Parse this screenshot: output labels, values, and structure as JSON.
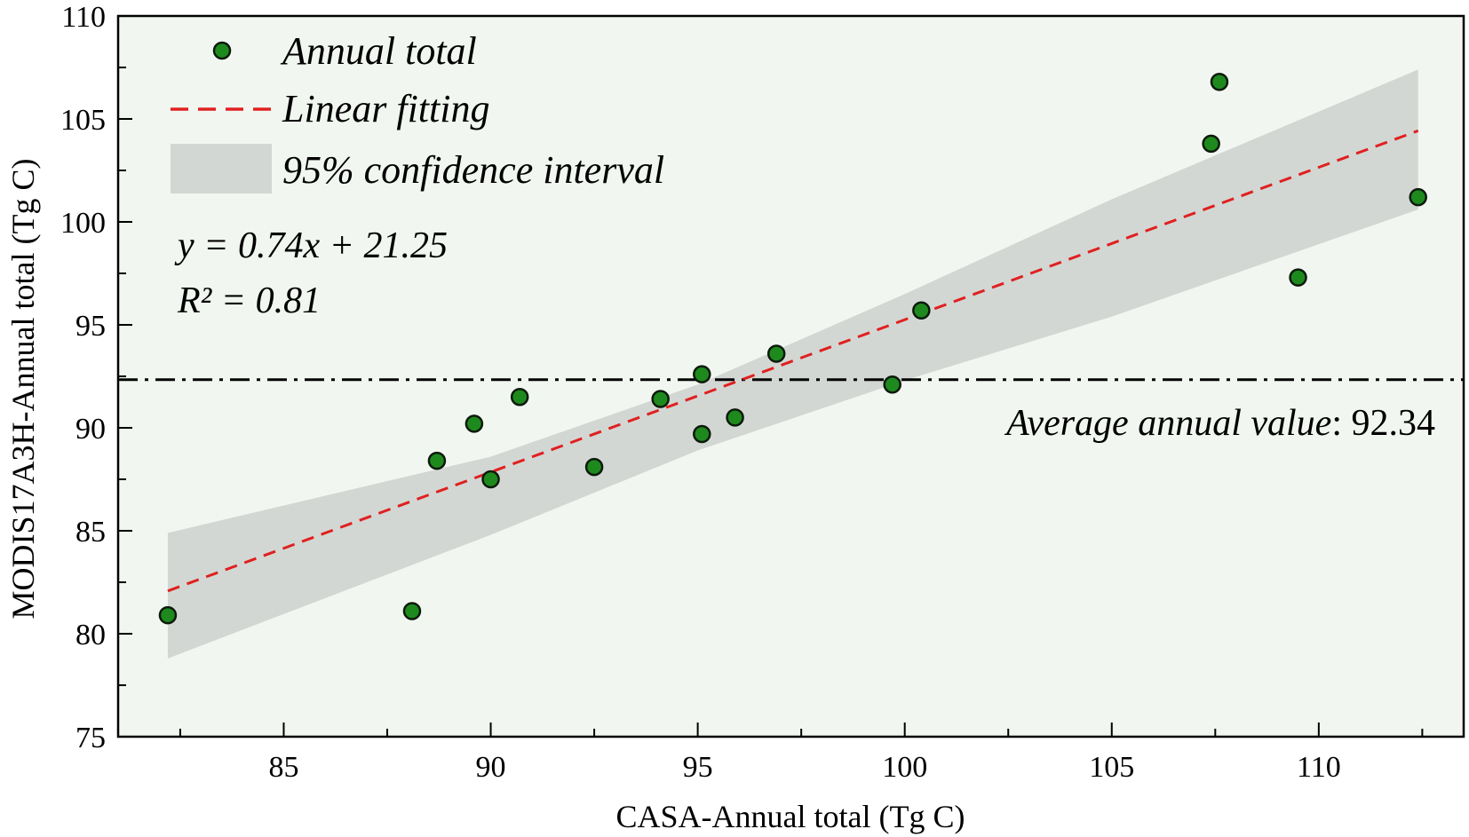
{
  "chart_data": {
    "type": "scatter",
    "xlabel": "CASA-Annual total (Tg C)",
    "ylabel": "MODIS17A3H-Annual total (Tg C)",
    "xlim": [
      81,
      113.5
    ],
    "ylim": [
      75,
      110
    ],
    "xticks": [
      85,
      90,
      95,
      100,
      105,
      110
    ],
    "yticks": [
      75,
      80,
      85,
      90,
      95,
      100,
      105,
      110
    ],
    "xtick_labels": [
      "85",
      "90",
      "95",
      "100",
      "105",
      "110"
    ],
    "ytick_labels": [
      "75",
      "80",
      "85",
      "90",
      "95",
      "100",
      "105",
      "110"
    ],
    "points": [
      {
        "x": 82.2,
        "y": 80.9
      },
      {
        "x": 88.1,
        "y": 81.1
      },
      {
        "x": 88.7,
        "y": 88.4
      },
      {
        "x": 89.6,
        "y": 90.2
      },
      {
        "x": 90.0,
        "y": 87.5
      },
      {
        "x": 90.7,
        "y": 91.5
      },
      {
        "x": 92.5,
        "y": 88.1
      },
      {
        "x": 94.1,
        "y": 91.4
      },
      {
        "x": 95.1,
        "y": 89.7
      },
      {
        "x": 95.1,
        "y": 92.6
      },
      {
        "x": 95.9,
        "y": 90.5
      },
      {
        "x": 96.9,
        "y": 93.6
      },
      {
        "x": 99.7,
        "y": 92.1
      },
      {
        "x": 100.4,
        "y": 95.7
      },
      {
        "x": 107.4,
        "y": 103.8
      },
      {
        "x": 107.6,
        "y": 106.8
      },
      {
        "x": 109.5,
        "y": 97.3
      },
      {
        "x": 112.4,
        "y": 101.2
      }
    ],
    "fit": {
      "slope": 0.74,
      "intercept": 21.25,
      "x_range": [
        82.2,
        112.4
      ]
    },
    "confidence_band": {
      "x": [
        82.2,
        90.0,
        95.0,
        100.0,
        105.0,
        112.4
      ],
      "lower": [
        78.8,
        84.8,
        88.9,
        92.3,
        95.4,
        100.6
      ],
      "upper": [
        84.9,
        88.6,
        92.1,
        96.5,
        101.1,
        107.4
      ]
    },
    "average_line": {
      "y": 92.34
    },
    "colors": {
      "plot_background": "#f1f7f0",
      "point_fill": "#1e8a1e",
      "point_stroke": "#0b1a0b",
      "fit_line": "#e02020",
      "band": "#d3d7d3",
      "average_line": "#000000"
    }
  },
  "legend": {
    "items": [
      {
        "label": "Annual total",
        "kind": "point"
      },
      {
        "label": "Linear fitting",
        "kind": "line"
      },
      {
        "label": "95% confidence interval",
        "kind": "band"
      }
    ]
  },
  "annotations": {
    "equation": "y = 0.74x + 21.25",
    "r_squared": "R² = 0.81",
    "average_label": "Average annual value",
    "average_value": ": 92.34"
  }
}
